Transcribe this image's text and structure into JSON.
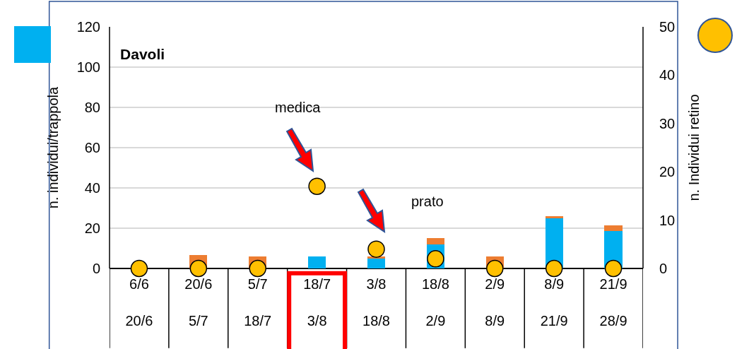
{
  "chart_data": {
    "type": "bar",
    "title": "Davoli",
    "ylabel": "n. individui/trappola",
    "y2label": "n. Individui retino",
    "categories": [
      "6/6\n20/6",
      "20/6\n5/7",
      "5/7\n18/7",
      "18/7\n3/8",
      "3/8\n18/8",
      "18/8\n2/9",
      "2/9\n8/9",
      "8/9\n21/9",
      "21/9\n28/9"
    ],
    "stacked": true,
    "series": [
      {
        "color": "#00b0f0",
        "values": [
          0,
          null,
          null,
          6,
          5,
          12,
          null,
          25,
          18.5
        ]
      },
      {
        "color": "#ed7d31",
        "values": [
          0,
          6.5,
          6,
          0,
          1,
          3,
          6,
          1,
          3
        ]
      },
      {
        "type": "scatter",
        "axis": "y2",
        "color": "#ffc000",
        "marker": "circle",
        "values": [
          0,
          0,
          0,
          17,
          4,
          2,
          0,
          0,
          0
        ]
      }
    ],
    "ylim": [
      0,
      120
    ],
    "yticks": [
      0,
      20,
      40,
      60,
      80,
      100,
      120
    ],
    "y2lim": [
      0,
      50
    ],
    "y2ticks": [
      0,
      10,
      20,
      30,
      40,
      50
    ],
    "grid": "y",
    "annotations": [
      "medica",
      "prato"
    ]
  }
}
